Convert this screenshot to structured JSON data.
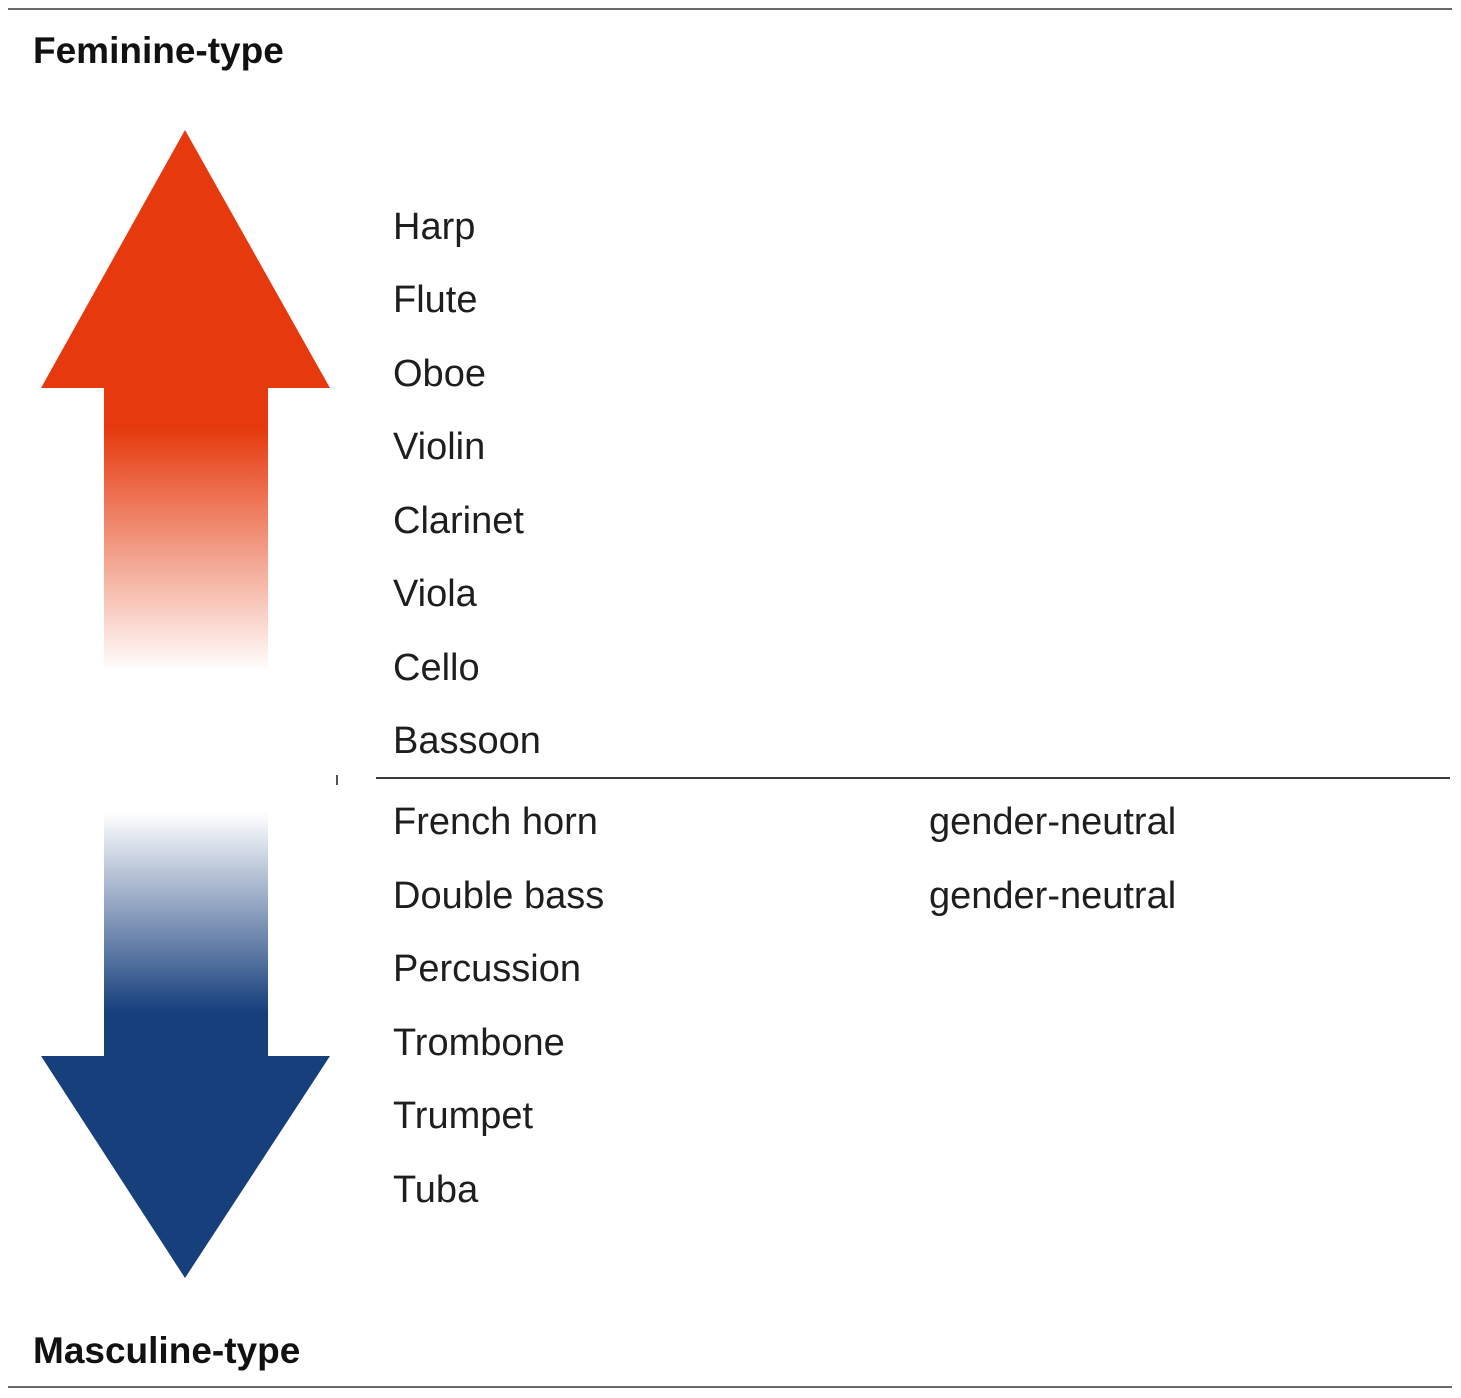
{
  "labels": {
    "top": "Feminine-type",
    "bottom": "Masculine-type"
  },
  "colors": {
    "feminine": "#e63a0e",
    "masculine": "#163f7c",
    "rule": "#6a6a6a"
  },
  "feminine_instruments": [
    "Harp",
    "Flute",
    "Oboe",
    "Violin",
    "Clarinet",
    "Viola",
    "Cello",
    "Bassoon"
  ],
  "masculine_instruments": [
    {
      "name": "French horn",
      "note": "gender-neutral"
    },
    {
      "name": "Double bass",
      "note": "gender-neutral"
    },
    {
      "name": "Percussion",
      "note": ""
    },
    {
      "name": "Trombone",
      "note": ""
    },
    {
      "name": "Trumpet",
      "note": ""
    },
    {
      "name": "Tuba",
      "note": ""
    }
  ]
}
